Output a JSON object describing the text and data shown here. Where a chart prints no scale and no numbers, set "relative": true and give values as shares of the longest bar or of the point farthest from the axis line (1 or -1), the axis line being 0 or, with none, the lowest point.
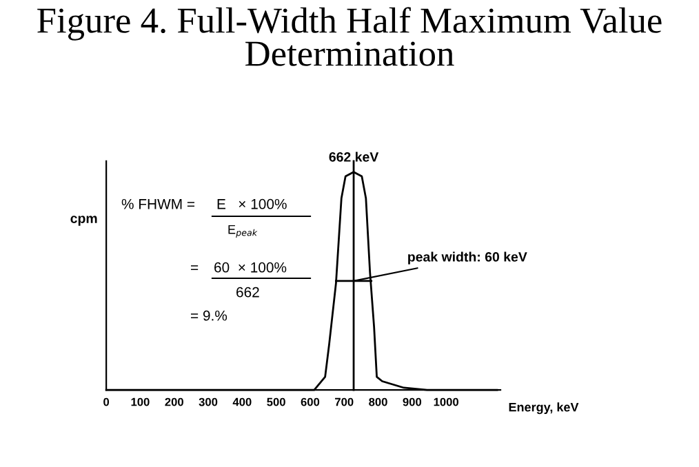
{
  "chart_data": {
    "type": "line",
    "title": "Figure 4. Full-Width Half Maximum Value Determination",
    "xlabel": "Energy, keV",
    "ylabel": "cpm",
    "relative": true,
    "series": [
      {
        "color": "#000000",
        "x": [
          0,
          612,
          644,
          656,
          676,
          692,
          704,
          728,
          752,
          764,
          776,
          788,
          796,
          812,
          876,
          944,
          1150
        ],
        "values": [
          0,
          0,
          0.06,
          0.21,
          0.49,
          0.88,
          0.98,
          1.0,
          0.98,
          0.88,
          0.54,
          0.29,
          0.06,
          0.04,
          0.01,
          0,
          0
        ]
      },
      {
        "color": "#000000",
        "x": [
          676,
          780
        ],
        "values": [
          0.5,
          0.5
        ]
      }
    ],
    "xlim": [
      0,
      1160
    ],
    "xticks": [
      0,
      100,
      200,
      300,
      400,
      500,
      600,
      700,
      800,
      900,
      1000
    ],
    "ref_lines": [
      {
        "axis": "x",
        "value": 728,
        "color": "#000000"
      }
    ],
    "annotations": [
      {
        "text": "662 keV",
        "x": 728,
        "y": 1.0
      },
      {
        "text": "peak width: 60 keV",
        "x": 728,
        "y": 0.5
      },
      "% FHWM =",
      "E   × 100%",
      "E$_{peak}$",
      "=",
      "60  × 100%",
      "662",
      "= 9.%"
    ],
    "grid": false,
    "legend": false,
    "tick_labels": "x",
    "line_style": "solid",
    "marker": "none"
  }
}
